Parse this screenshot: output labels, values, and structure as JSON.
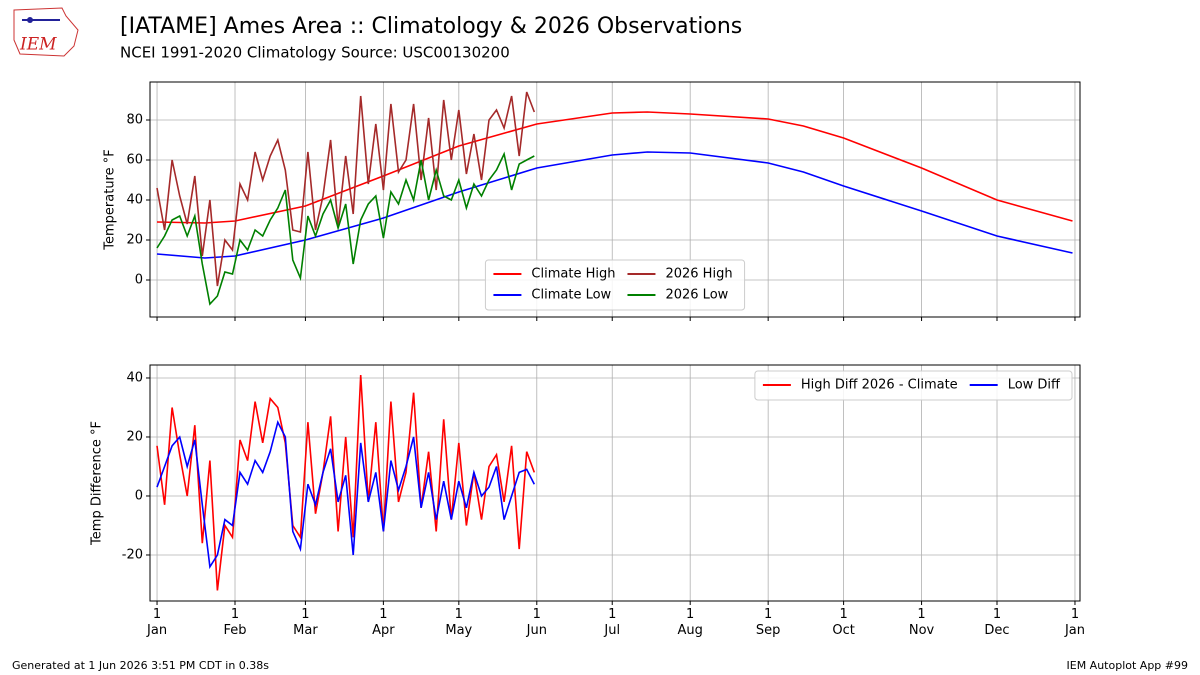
{
  "header": {
    "title": "[IATAME] Ames Area :: Climatology & 2026 Observations",
    "subtitle": "NCEI 1991-2020 Climatology Source: USC00130200",
    "logo": "IEM"
  },
  "footer": {
    "left": "Generated at 1 Jun 2026 3:51 PM CDT in 0.38s",
    "right": "IEM Autoplot App #99"
  },
  "chart_data": [
    {
      "type": "line",
      "ylabel": "Temperature °F",
      "xlim": [
        -2.8,
        367
      ],
      "ylim": [
        -18.5,
        99
      ],
      "xticks": [
        0,
        31,
        59,
        90,
        120,
        151,
        181,
        212,
        243,
        273,
        304,
        334,
        365
      ],
      "yticks": [
        0,
        20,
        40,
        60,
        80
      ],
      "grid": true,
      "legend": "lower center",
      "legend_columns": 2,
      "series": [
        {
          "name": "Climate High",
          "color": "#ff0000",
          "x": [
            0,
            19,
            31,
            59,
            90,
            120,
            151,
            181,
            195,
            212,
            243,
            257,
            273,
            304,
            334,
            364
          ],
          "values": [
            29,
            28.5,
            29.5,
            37,
            52,
            67,
            78,
            83.5,
            84,
            83,
            80.5,
            77,
            71,
            56,
            40,
            29.5
          ]
        },
        {
          "name": "Climate Low",
          "color": "#0000ff",
          "x": [
            0,
            19,
            31,
            59,
            90,
            120,
            151,
            181,
            195,
            212,
            243,
            257,
            273,
            304,
            334,
            364
          ],
          "values": [
            13,
            11,
            12,
            20,
            31,
            44,
            56,
            62.5,
            64,
            63.5,
            58.5,
            54,
            47,
            34.5,
            22,
            13.5
          ]
        },
        {
          "name": "2026 High",
          "color": "#a52a2a",
          "x": [
            0,
            3,
            6,
            9,
            12,
            15,
            18,
            21,
            24,
            27,
            30,
            33,
            36,
            39,
            42,
            45,
            48,
            51,
            54,
            57,
            60,
            63,
            66,
            69,
            72,
            75,
            78,
            81,
            84,
            87,
            90,
            93,
            96,
            99,
            102,
            105,
            108,
            111,
            114,
            117,
            120,
            123,
            126,
            129,
            132,
            135,
            138,
            141,
            144,
            147,
            150
          ],
          "values": [
            46,
            25,
            60,
            42,
            28,
            52,
            12,
            40,
            -3,
            20,
            15,
            48,
            40,
            64,
            50,
            62,
            70,
            55,
            25,
            24,
            64,
            25,
            42,
            70,
            27,
            62,
            33,
            92,
            48,
            78,
            45,
            88,
            54,
            60,
            88,
            50,
            81,
            45,
            90,
            60,
            85,
            53,
            73,
            50,
            80,
            85,
            76,
            92,
            62,
            94,
            84
          ]
        },
        {
          "name": "2026 Low",
          "color": "#008000",
          "x": [
            0,
            3,
            6,
            9,
            12,
            15,
            18,
            21,
            24,
            27,
            30,
            33,
            36,
            39,
            42,
            45,
            48,
            51,
            54,
            57,
            60,
            63,
            66,
            69,
            72,
            75,
            78,
            81,
            84,
            87,
            90,
            93,
            96,
            99,
            102,
            105,
            108,
            111,
            114,
            117,
            120,
            123,
            126,
            129,
            132,
            135,
            138,
            141,
            144,
            147,
            150
          ],
          "values": [
            16,
            22,
            30,
            32,
            22,
            32,
            8,
            -12,
            -8,
            4,
            3,
            20,
            15,
            25,
            22,
            30,
            36,
            45,
            10,
            1,
            32,
            22,
            33,
            40,
            26,
            38,
            8,
            30,
            38,
            42,
            21,
            44,
            38,
            50,
            40,
            60,
            40,
            55,
            42,
            40,
            50,
            36,
            48,
            42,
            50,
            55,
            63,
            45,
            58,
            60,
            62
          ]
        }
      ]
    },
    {
      "type": "line",
      "ylabel": "Temp Difference °F",
      "xlim": [
        -2.8,
        367
      ],
      "ylim": [
        -35.6,
        44.4
      ],
      "xticks": [
        {
          "value": 0,
          "label": "1\nJan"
        },
        {
          "value": 31,
          "label": "1\nFeb"
        },
        {
          "value": 59,
          "label": "1\nMar"
        },
        {
          "value": 90,
          "label": "1\nApr"
        },
        {
          "value": 120,
          "label": "1\nMay"
        },
        {
          "value": 151,
          "label": "1\nJun"
        },
        {
          "value": 181,
          "label": "1\nJul"
        },
        {
          "value": 212,
          "label": "1\nAug"
        },
        {
          "value": 243,
          "label": "1\nSep"
        },
        {
          "value": 273,
          "label": "1\nOct"
        },
        {
          "value": 304,
          "label": "1\nNov"
        },
        {
          "value": 334,
          "label": "1\nDec"
        },
        {
          "value": 365,
          "label": "1\nJan"
        }
      ],
      "yticks": [
        -20,
        0,
        20,
        40
      ],
      "grid": true,
      "legend": "upper right",
      "legend_columns": 2,
      "series": [
        {
          "name": "High Diff 2026 - Climate",
          "color": "#ff0000",
          "x": [
            0,
            3,
            6,
            9,
            12,
            15,
            18,
            21,
            24,
            27,
            30,
            33,
            36,
            39,
            42,
            45,
            48,
            51,
            54,
            57,
            60,
            63,
            66,
            69,
            72,
            75,
            78,
            81,
            84,
            87,
            90,
            93,
            96,
            99,
            102,
            105,
            108,
            111,
            114,
            117,
            120,
            123,
            126,
            129,
            132,
            135,
            138,
            141,
            144,
            147,
            150
          ],
          "values": [
            17,
            -3,
            30,
            14,
            0,
            24,
            -16,
            12,
            -32,
            -10,
            -14,
            19,
            12,
            32,
            18,
            33,
            30,
            18,
            -10,
            -14,
            25,
            -6,
            8,
            27,
            -12,
            20,
            -14,
            41,
            -2,
            25,
            -12,
            32,
            -2,
            8,
            35,
            -4,
            15,
            -12,
            26,
            -8,
            18,
            -10,
            8,
            -8,
            10,
            14,
            -2,
            17,
            -18,
            15,
            8
          ]
        },
        {
          "name": "Low Diff",
          "color": "#0000ff",
          "x": [
            0,
            3,
            6,
            9,
            12,
            15,
            18,
            21,
            24,
            27,
            30,
            33,
            36,
            39,
            42,
            45,
            48,
            51,
            54,
            57,
            60,
            63,
            66,
            69,
            72,
            75,
            78,
            81,
            84,
            87,
            90,
            93,
            96,
            99,
            102,
            105,
            108,
            111,
            114,
            117,
            120,
            123,
            126,
            129,
            132,
            135,
            138,
            141,
            144,
            147,
            150
          ],
          "values": [
            3,
            10,
            17,
            20,
            10,
            19,
            -3,
            -24,
            -20,
            -8,
            -10,
            8,
            4,
            12,
            8,
            15,
            25,
            20,
            -12,
            -18,
            4,
            -3,
            8,
            16,
            -2,
            7,
            -20,
            18,
            -2,
            8,
            -12,
            12,
            2,
            10,
            20,
            -4,
            8,
            -8,
            5,
            -8,
            5,
            -4,
            8,
            0,
            3,
            10,
            -8,
            0,
            8,
            9,
            4
          ]
        }
      ]
    }
  ]
}
